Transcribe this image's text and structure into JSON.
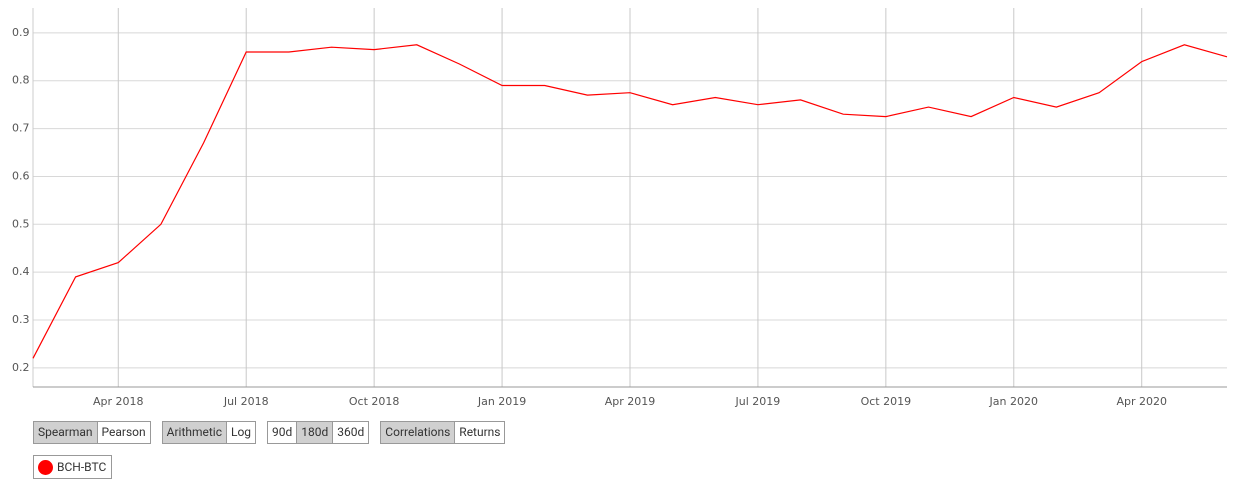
{
  "chart_data": {
    "type": "line",
    "x": [
      "Feb 2018",
      "Mar 2018",
      "Apr 2018",
      "May 2018",
      "Jun 2018",
      "Jul 2018",
      "Aug 2018",
      "Sep 2018",
      "Oct 2018",
      "Nov 2018",
      "Dec 2018",
      "Jan 2019",
      "Feb 2019",
      "Mar 2019",
      "Apr 2019",
      "May 2019",
      "Jun 2019",
      "Jul 2019",
      "Aug 2019",
      "Sep 2019",
      "Oct 2019",
      "Nov 2019",
      "Dec 2019",
      "Jan 2020",
      "Feb 2020",
      "Mar 2020",
      "Apr 2020",
      "May 2020",
      "Jun 2020"
    ],
    "series": [
      {
        "name": "BCH-BTC",
        "color": "#ff0000",
        "values": [
          0.22,
          0.39,
          0.42,
          0.5,
          0.67,
          0.86,
          0.86,
          0.87,
          0.865,
          0.875,
          0.835,
          0.79,
          0.79,
          0.77,
          0.775,
          0.75,
          0.765,
          0.75,
          0.76,
          0.73,
          0.725,
          0.745,
          0.725,
          0.765,
          0.745,
          0.775,
          0.84,
          0.875,
          0.85
        ]
      }
    ],
    "ylim": [
      0.16,
      0.952
    ],
    "yticks": [
      0.2,
      0.3,
      0.4,
      0.5,
      0.6,
      0.7,
      0.8,
      0.9
    ],
    "xticks": [
      "Apr 2018",
      "Jul 2018",
      "Oct 2018",
      "Jan 2019",
      "Apr 2019",
      "Jul 2019",
      "Oct 2019",
      "Jan 2020",
      "Apr 2020"
    ],
    "grid": true
  },
  "controls": {
    "groups": [
      {
        "buttons": [
          "Spearman",
          "Pearson"
        ],
        "selected": 0
      },
      {
        "buttons": [
          "Arithmetic",
          "Log"
        ],
        "selected": 0
      },
      {
        "buttons": [
          "90d",
          "180d",
          "360d"
        ],
        "selected": 1
      },
      {
        "buttons": [
          "Correlations",
          "Returns"
        ],
        "selected": 0
      }
    ]
  }
}
